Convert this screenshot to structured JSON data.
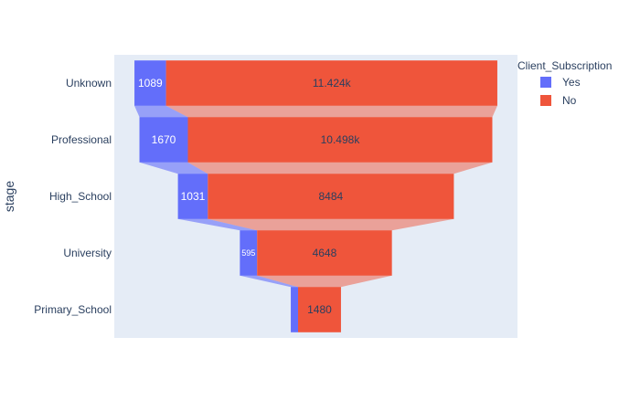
{
  "chart_data": {
    "type": "funnel",
    "ylabel": "stage",
    "categories": [
      "Unknown",
      "Professional",
      "High_School",
      "University",
      "Primary_School"
    ],
    "series": [
      {
        "name": "Yes",
        "values": [
          1089,
          1670,
          1031,
          595,
          251
        ],
        "labels": [
          "1089",
          "1670",
          "1031",
          "595",
          ""
        ],
        "color": "#636efa"
      },
      {
        "name": "No",
        "values": [
          11424,
          10498,
          8484,
          4648,
          1480
        ],
        "labels": [
          "11.424k",
          "10.498k",
          "8484",
          "4648",
          "1480"
        ],
        "color": "#ef553b"
      }
    ],
    "legend": {
      "title": "Client_Subscription",
      "position": "top-right"
    },
    "grid": false
  },
  "colors": {
    "plot_background": "#e5ecf6",
    "text": "#2a3f5f"
  }
}
